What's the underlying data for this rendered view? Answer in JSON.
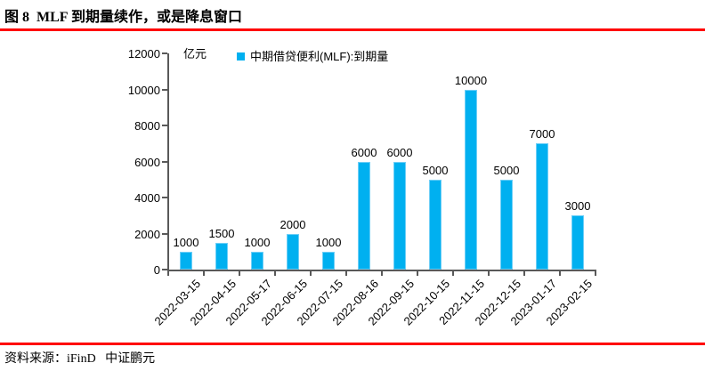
{
  "figure": {
    "title": "图 8  MLF 到期量续作，或是降息窗口",
    "source_label": "资料来源：iFinD   中证鹏元"
  },
  "colors": {
    "accent_red": "#FF0000",
    "bar_fill": "#00B0F0",
    "bar_edge": "#6FCFF7",
    "axis_gray": "#595959",
    "text_black": "#000000"
  },
  "chart_data": {
    "type": "bar",
    "title": "",
    "unit_label": "亿元",
    "legend": [
      "中期借贷便利(MLF):到期量"
    ],
    "legend_position": "top-center",
    "legend_marker": "square",
    "categories": [
      "2022-03-15",
      "2022-04-15",
      "2022-05-17",
      "2022-06-15",
      "2022-07-15",
      "2022-08-16",
      "2022-09-15",
      "2022-10-15",
      "2022-11-15",
      "2022-12-15",
      "2023-01-17",
      "2023-02-15"
    ],
    "values": [
      1000,
      1500,
      1000,
      2000,
      1000,
      6000,
      6000,
      5000,
      10000,
      5000,
      7000,
      3000
    ],
    "xlabel": "",
    "ylabel": "亿元",
    "ylim": [
      0,
      12000
    ],
    "ytick_step": 2000,
    "grid": false,
    "data_labels": true,
    "x_label_rotation_deg": -45
  }
}
